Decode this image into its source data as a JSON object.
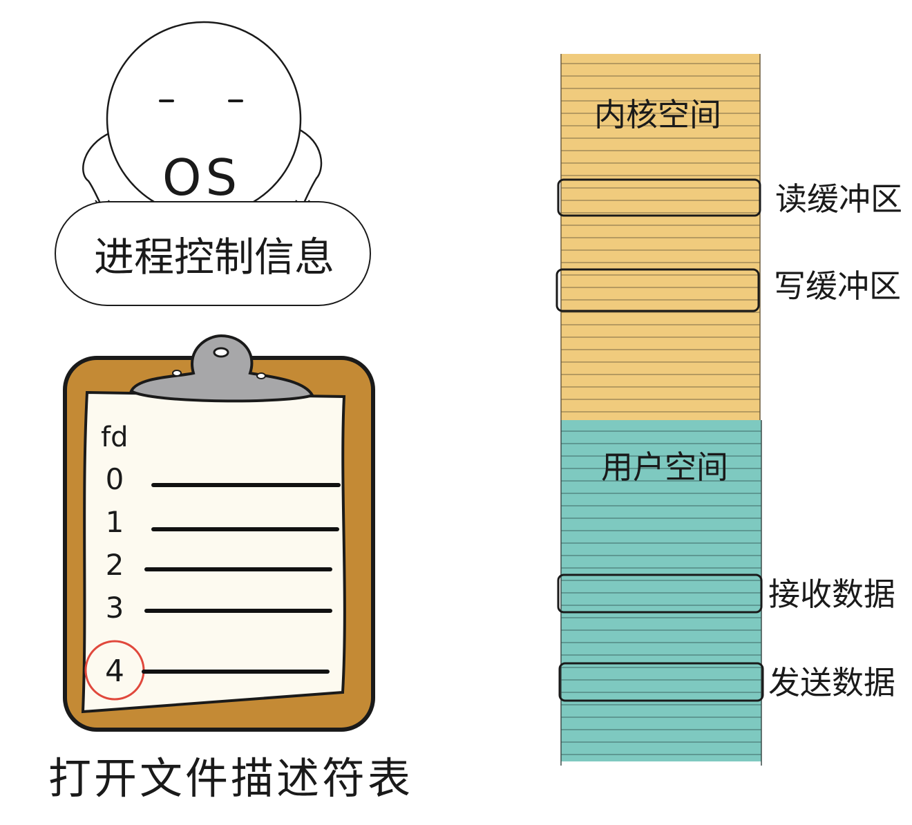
{
  "os_character": {
    "label": "OS",
    "banner_text": "进程控制信息"
  },
  "fd_table": {
    "header": "fd",
    "rows": [
      "0",
      "1",
      "2",
      "3",
      "4"
    ],
    "highlighted": "4",
    "caption": "打开文件描述符表"
  },
  "memory": {
    "kernel": {
      "label": "内核空间",
      "color": "#f0cb7d",
      "buffers": [
        "读缓冲区",
        "写缓冲区"
      ]
    },
    "user": {
      "label": "用户空间",
      "color": "#7ec9c0",
      "buffers": [
        "接收数据",
        "发送数据"
      ]
    }
  },
  "colors": {
    "clipboard_board": "#c48a35",
    "clipboard_clip": "#a7a7a9",
    "paper": "#fdfaf0",
    "highlight_circle": "#e0483c"
  }
}
